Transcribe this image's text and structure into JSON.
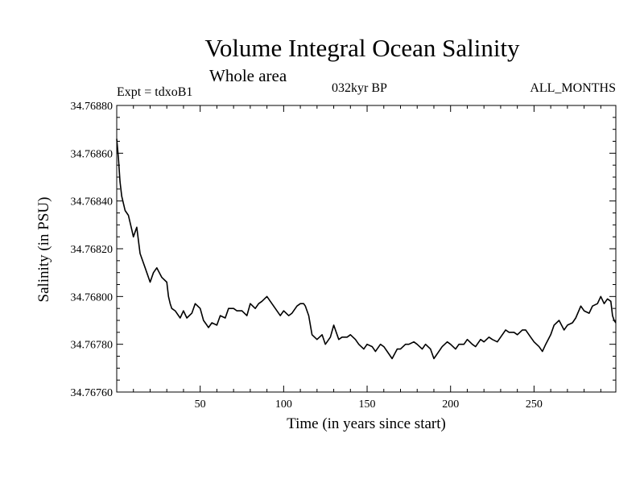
{
  "chart_data": {
    "type": "line",
    "title": "Volume Integral Ocean Salinity",
    "subtitle": "Whole area",
    "experiment_label": "Expt = tdxoB1",
    "period_label": "032kyr BP",
    "months_label": "ALL_MONTHS",
    "xlabel": "Time (in years since start)",
    "ylabel": "Salinity (in PSU)",
    "xlim": [
      0,
      299
    ],
    "ylim": [
      34.7676,
      34.7688
    ],
    "xticks": [
      50,
      100,
      150,
      200,
      250
    ],
    "xtick_labels": [
      "50",
      "100",
      "150",
      "200",
      "250"
    ],
    "yticks": [
      34.7676,
      34.7678,
      34.768,
      34.7682,
      34.7684,
      34.7686,
      34.7688
    ],
    "ytick_labels": [
      "34.76760",
      "34.76780",
      "34.76800",
      "34.76820",
      "34.76840",
      "34.76860",
      "34.76880"
    ],
    "grid": false,
    "series": [
      {
        "name": "salinity",
        "x": [
          0,
          1,
          2,
          3,
          5,
          7,
          9,
          10,
          12,
          14,
          17,
          20,
          22,
          24,
          27,
          30,
          31,
          32,
          33,
          35,
          38,
          40,
          42,
          45,
          47,
          50,
          52,
          54,
          55,
          57,
          60,
          62,
          65,
          67,
          70,
          72,
          75,
          78,
          80,
          83,
          85,
          87,
          90,
          93,
          95,
          98,
          100,
          103,
          105,
          108,
          110,
          112,
          113,
          115,
          117,
          120,
          123,
          125,
          128,
          130,
          133,
          135,
          138,
          140,
          143,
          145,
          148,
          150,
          153,
          155,
          158,
          160,
          163,
          165,
          168,
          170,
          173,
          175,
          178,
          180,
          183,
          185,
          188,
          190,
          193,
          195,
          198,
          200,
          203,
          205,
          208,
          210,
          213,
          215,
          218,
          220,
          223,
          225,
          228,
          230,
          233,
          235,
          238,
          240,
          243,
          245,
          248,
          250,
          253,
          255,
          257,
          260,
          262,
          265,
          268,
          270,
          273,
          275,
          278,
          280,
          283,
          285,
          288,
          290,
          292,
          294,
          296,
          297,
          298,
          299
        ],
        "values": [
          34.76866,
          34.76858,
          34.76848,
          34.76842,
          34.76836,
          34.76834,
          34.76828,
          34.76825,
          34.76829,
          34.76818,
          34.76812,
          34.76806,
          34.7681,
          34.76812,
          34.76808,
          34.76806,
          34.768,
          34.76797,
          34.76795,
          34.76794,
          34.76791,
          34.76794,
          34.76791,
          34.76793,
          34.76797,
          34.76795,
          34.7679,
          34.76788,
          34.76787,
          34.76789,
          34.76788,
          34.76792,
          34.76791,
          34.76795,
          34.76795,
          34.76794,
          34.76794,
          34.76792,
          34.76797,
          34.76795,
          34.76797,
          34.76798,
          34.768,
          34.76797,
          34.76795,
          34.76792,
          34.76794,
          34.76792,
          34.76793,
          34.76796,
          34.76797,
          34.76797,
          34.76796,
          34.76792,
          34.76784,
          34.76782,
          34.76784,
          34.7678,
          34.76783,
          34.76788,
          34.76782,
          34.76783,
          34.76783,
          34.76784,
          34.76782,
          34.7678,
          34.76778,
          34.7678,
          34.76779,
          34.76777,
          34.7678,
          34.76779,
          34.76776,
          34.76774,
          34.76778,
          34.76778,
          34.7678,
          34.7678,
          34.76781,
          34.7678,
          34.76778,
          34.7678,
          34.76778,
          34.76774,
          34.76777,
          34.76779,
          34.76781,
          34.7678,
          34.76778,
          34.7678,
          34.7678,
          34.76782,
          34.7678,
          34.76779,
          34.76782,
          34.76781,
          34.76783,
          34.76782,
          34.76781,
          34.76783,
          34.76786,
          34.76785,
          34.76785,
          34.76784,
          34.76786,
          34.76786,
          34.76783,
          34.76781,
          34.76779,
          34.76777,
          34.7678,
          34.76784,
          34.76788,
          34.7679,
          34.76786,
          34.76788,
          34.76789,
          34.76791,
          34.76796,
          34.76794,
          34.76793,
          34.76796,
          34.76797,
          34.768,
          34.76797,
          34.76799,
          34.76798,
          34.76792,
          34.7679,
          34.76789
        ]
      }
    ]
  }
}
